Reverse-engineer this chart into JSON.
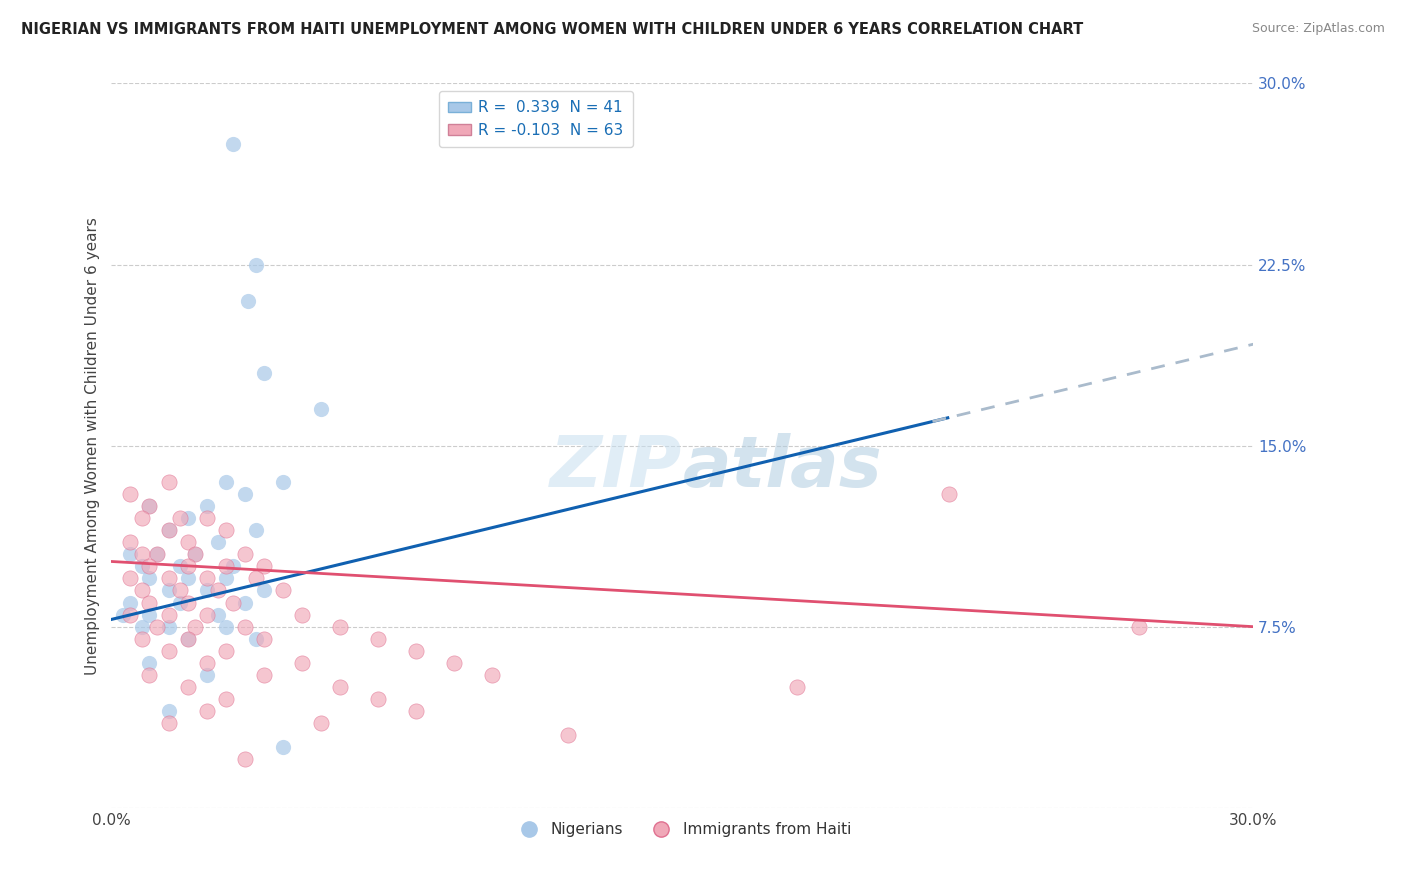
{
  "title": "NIGERIAN VS IMMIGRANTS FROM HAITI UNEMPLOYMENT AMONG WOMEN WITH CHILDREN UNDER 6 YEARS CORRELATION CHART",
  "source": "Source: ZipAtlas.com",
  "ylabel": "Unemployment Among Women with Children Under 6 years",
  "ytick_values": [
    0.0,
    7.5,
    15.0,
    22.5,
    30.0
  ],
  "xmin": 0.0,
  "xmax": 30.0,
  "ymin": 0.0,
  "ymax": 30.0,
  "nigerian_color": "#a8c8e8",
  "nigerian_edge": "#5090c0",
  "haiti_color": "#f0a8b8",
  "haiti_edge": "#e07090",
  "trend_blue": "#1060b0",
  "trend_pink": "#e05070",
  "trend_dash_color": "#aabbcc",
  "ytick_color": "#4472c4",
  "blue_line_intercept": 7.8,
  "blue_line_slope": 0.38,
  "pink_line_intercept": 10.2,
  "pink_line_slope": -0.09,
  "blue_solid_end": 22.0,
  "nigerian_points": [
    [
      3.2,
      27.5
    ],
    [
      3.8,
      22.5
    ],
    [
      3.6,
      21.0
    ],
    [
      4.0,
      18.0
    ],
    [
      5.5,
      16.5
    ],
    [
      1.0,
      12.5
    ],
    [
      2.0,
      12.0
    ],
    [
      2.5,
      12.5
    ],
    [
      3.0,
      13.5
    ],
    [
      3.5,
      13.0
    ],
    [
      4.5,
      13.5
    ],
    [
      1.5,
      11.5
    ],
    [
      2.8,
      11.0
    ],
    [
      3.8,
      11.5
    ],
    [
      0.5,
      10.5
    ],
    [
      1.2,
      10.5
    ],
    [
      2.2,
      10.5
    ],
    [
      0.8,
      10.0
    ],
    [
      1.8,
      10.0
    ],
    [
      3.2,
      10.0
    ],
    [
      1.0,
      9.5
    ],
    [
      2.0,
      9.5
    ],
    [
      3.0,
      9.5
    ],
    [
      1.5,
      9.0
    ],
    [
      2.5,
      9.0
    ],
    [
      4.0,
      9.0
    ],
    [
      0.5,
      8.5
    ],
    [
      1.8,
      8.5
    ],
    [
      3.5,
      8.5
    ],
    [
      0.3,
      8.0
    ],
    [
      1.0,
      8.0
    ],
    [
      2.8,
      8.0
    ],
    [
      0.8,
      7.5
    ],
    [
      1.5,
      7.5
    ],
    [
      3.0,
      7.5
    ],
    [
      2.0,
      7.0
    ],
    [
      3.8,
      7.0
    ],
    [
      1.0,
      6.0
    ],
    [
      2.5,
      5.5
    ],
    [
      1.5,
      4.0
    ],
    [
      4.5,
      2.5
    ]
  ],
  "haiti_points": [
    [
      0.5,
      13.0
    ],
    [
      1.0,
      12.5
    ],
    [
      1.5,
      13.5
    ],
    [
      0.8,
      12.0
    ],
    [
      1.8,
      12.0
    ],
    [
      2.5,
      12.0
    ],
    [
      0.5,
      11.0
    ],
    [
      1.5,
      11.5
    ],
    [
      2.0,
      11.0
    ],
    [
      3.0,
      11.5
    ],
    [
      0.8,
      10.5
    ],
    [
      1.2,
      10.5
    ],
    [
      2.2,
      10.5
    ],
    [
      3.5,
      10.5
    ],
    [
      1.0,
      10.0
    ],
    [
      2.0,
      10.0
    ],
    [
      3.0,
      10.0
    ],
    [
      4.0,
      10.0
    ],
    [
      0.5,
      9.5
    ],
    [
      1.5,
      9.5
    ],
    [
      2.5,
      9.5
    ],
    [
      3.8,
      9.5
    ],
    [
      0.8,
      9.0
    ],
    [
      1.8,
      9.0
    ],
    [
      2.8,
      9.0
    ],
    [
      4.5,
      9.0
    ],
    [
      1.0,
      8.5
    ],
    [
      2.0,
      8.5
    ],
    [
      3.2,
      8.5
    ],
    [
      0.5,
      8.0
    ],
    [
      1.5,
      8.0
    ],
    [
      2.5,
      8.0
    ],
    [
      5.0,
      8.0
    ],
    [
      1.2,
      7.5
    ],
    [
      2.2,
      7.5
    ],
    [
      3.5,
      7.5
    ],
    [
      6.0,
      7.5
    ],
    [
      0.8,
      7.0
    ],
    [
      2.0,
      7.0
    ],
    [
      4.0,
      7.0
    ],
    [
      7.0,
      7.0
    ],
    [
      1.5,
      6.5
    ],
    [
      3.0,
      6.5
    ],
    [
      8.0,
      6.5
    ],
    [
      2.5,
      6.0
    ],
    [
      5.0,
      6.0
    ],
    [
      9.0,
      6.0
    ],
    [
      1.0,
      5.5
    ],
    [
      4.0,
      5.5
    ],
    [
      10.0,
      5.5
    ],
    [
      2.0,
      5.0
    ],
    [
      6.0,
      5.0
    ],
    [
      18.0,
      5.0
    ],
    [
      3.0,
      4.5
    ],
    [
      7.0,
      4.5
    ],
    [
      2.5,
      4.0
    ],
    [
      8.0,
      4.0
    ],
    [
      1.5,
      3.5
    ],
    [
      5.5,
      3.5
    ],
    [
      12.0,
      3.0
    ],
    [
      3.5,
      2.0
    ],
    [
      22.0,
      13.0
    ],
    [
      27.0,
      7.5
    ]
  ]
}
